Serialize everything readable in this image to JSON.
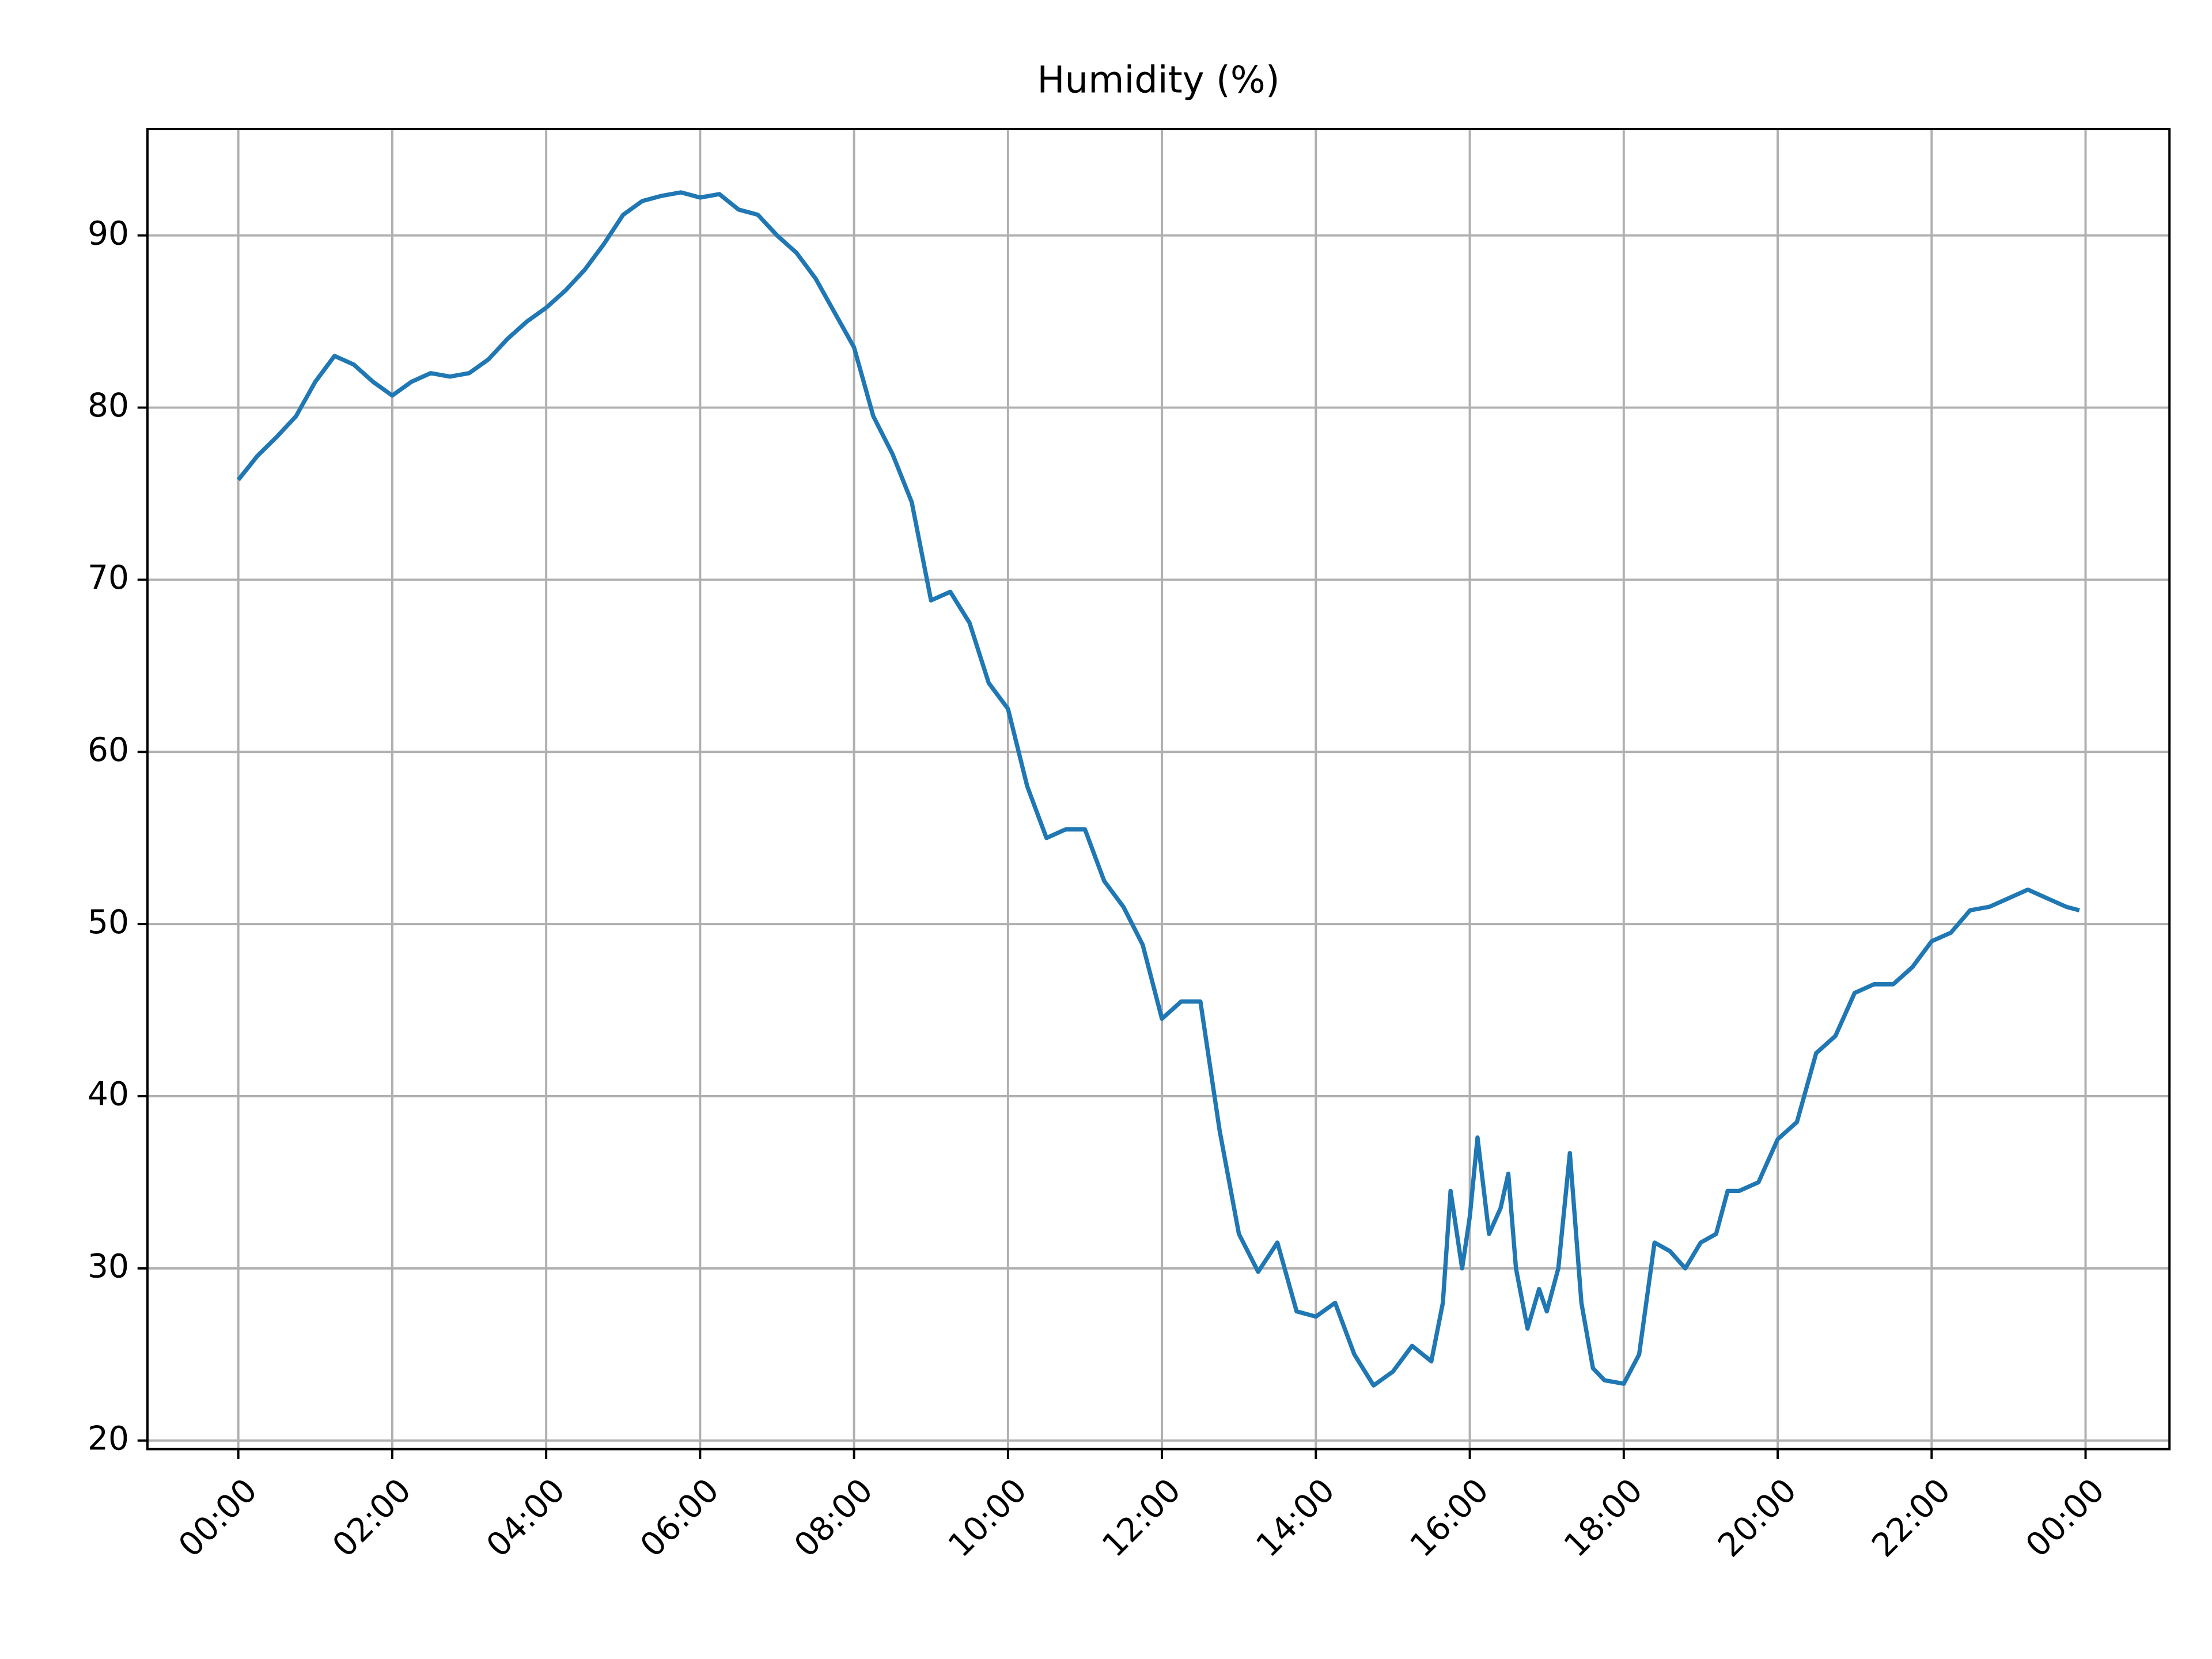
{
  "chart_data": {
    "type": "line",
    "title": "Humidity (%)",
    "color": "#1f77b4",
    "grid": true,
    "x": [
      0,
      0.25,
      0.5,
      0.75,
      1.0,
      1.25,
      1.5,
      1.75,
      2.0,
      2.25,
      2.5,
      2.75,
      3.0,
      3.25,
      3.5,
      3.75,
      4.0,
      4.25,
      4.5,
      4.75,
      5.0,
      5.25,
      5.5,
      5.75,
      6.0,
      6.25,
      6.5,
      6.75,
      7.0,
      7.25,
      7.5,
      7.75,
      8.0,
      8.25,
      8.5,
      8.75,
      9.0,
      9.25,
      9.5,
      9.75,
      10.0,
      10.25,
      10.5,
      10.75,
      11.0,
      11.25,
      11.5,
      11.75,
      12.0,
      12.25,
      12.5,
      12.75,
      13.0,
      13.25,
      13.5,
      13.75,
      14.0,
      14.25,
      14.5,
      14.75,
      15.0,
      15.25,
      15.5,
      15.65,
      15.75,
      15.9,
      16.0,
      16.1,
      16.25,
      16.4,
      16.5,
      16.6,
      16.75,
      16.9,
      17.0,
      17.15,
      17.3,
      17.45,
      17.6,
      17.75,
      18.0,
      18.2,
      18.4,
      18.6,
      18.8,
      19.0,
      19.2,
      19.35,
      19.5,
      19.75,
      20.0,
      20.25,
      20.5,
      20.75,
      21.0,
      21.25,
      21.5,
      21.75,
      22.0,
      22.25,
      22.5,
      22.75,
      23.0,
      23.25,
      23.5,
      23.75,
      23.92
    ],
    "values": [
      75.8,
      77.2,
      78.3,
      79.5,
      81.5,
      83.0,
      82.5,
      81.5,
      80.7,
      81.5,
      82.0,
      81.8,
      82.0,
      82.8,
      84.0,
      85.0,
      85.8,
      86.8,
      88.0,
      89.5,
      91.2,
      92.0,
      92.3,
      92.5,
      92.2,
      92.4,
      91.5,
      91.2,
      90.0,
      89.0,
      87.5,
      85.5,
      83.5,
      79.5,
      77.3,
      74.5,
      68.8,
      69.3,
      67.5,
      64.0,
      62.5,
      58.0,
      55.0,
      55.5,
      55.5,
      52.5,
      51.0,
      48.8,
      44.5,
      45.5,
      45.5,
      38.0,
      32.0,
      29.8,
      31.5,
      27.5,
      27.2,
      28.0,
      25.0,
      23.2,
      24.0,
      25.5,
      24.6,
      28,
      34.5,
      30,
      33,
      37.6,
      32,
      33.5,
      35.5,
      30,
      26.5,
      28.8,
      27.5,
      30,
      36.7,
      28,
      24.2,
      23.5,
      23.3,
      25,
      31.5,
      31,
      30,
      31.5,
      32,
      34.5,
      34.5,
      35,
      37.5,
      38.5,
      42.5,
      43.5,
      46,
      46.5,
      46.5,
      47.5,
      49,
      49.5,
      50.8,
      51,
      51.5,
      52,
      51.5,
      51,
      50.8
    ],
    "xlim": [
      -1.18,
      25.09
    ],
    "xticks": [
      {
        "value": 0,
        "label": "00:00"
      },
      {
        "value": 2,
        "label": "02:00"
      },
      {
        "value": 4,
        "label": "04:00"
      },
      {
        "value": 6,
        "label": "06:00"
      },
      {
        "value": 8,
        "label": "08:00"
      },
      {
        "value": 10,
        "label": "10:00"
      },
      {
        "value": 12,
        "label": "12:00"
      },
      {
        "value": 14,
        "label": "14:00"
      },
      {
        "value": 16,
        "label": "16:00"
      },
      {
        "value": 18,
        "label": "18:00"
      },
      {
        "value": 20,
        "label": "20:00"
      },
      {
        "value": 22,
        "label": "22:00"
      },
      {
        "value": 24,
        "label": "00:00"
      }
    ],
    "ylim": [
      19.5,
      96.18
    ],
    "yticks": [
      20,
      30,
      40,
      50,
      60,
      70,
      80,
      90
    ]
  }
}
